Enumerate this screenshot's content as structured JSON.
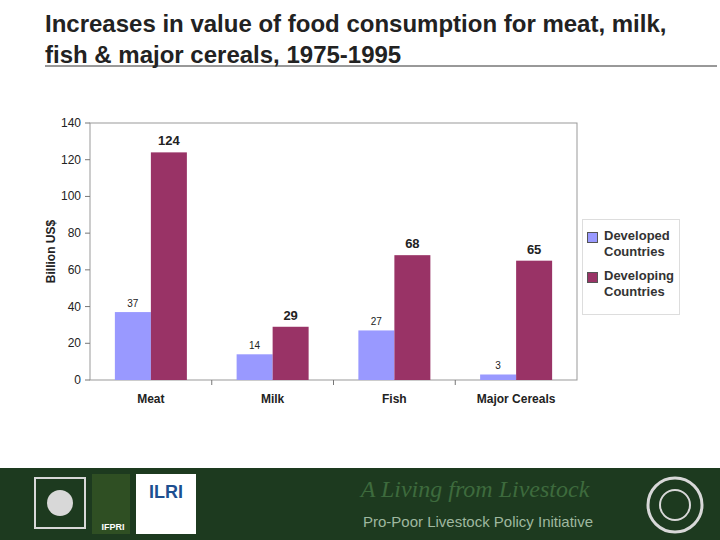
{
  "chart_data": {
    "type": "bar",
    "title": "Increases in value of food consumption for meat, milk, fish & major cereals, 1975-1995",
    "y_label": "Billion US$",
    "categories": [
      "Meat",
      "Milk",
      "Fish",
      "Major Cereals"
    ],
    "series": [
      {
        "name": "Developed Countries",
        "color": "#9999ff",
        "values": [
          37,
          14,
          27,
          3
        ]
      },
      {
        "name": "Developing Countries",
        "color": "#993366",
        "values": [
          124,
          29,
          68,
          65
        ]
      }
    ],
    "ylim": [
      0,
      140
    ],
    "yticks": [
      0,
      20,
      40,
      60,
      80,
      100,
      120,
      140
    ],
    "grid": false,
    "legend": "right",
    "data_labels": true
  },
  "footer": {
    "tagline": "A Living from Livestock",
    "subtitle": "Pro-Poor Livestock Policy Initiative",
    "logos": [
      "ILRI",
      "IFPRI"
    ]
  }
}
